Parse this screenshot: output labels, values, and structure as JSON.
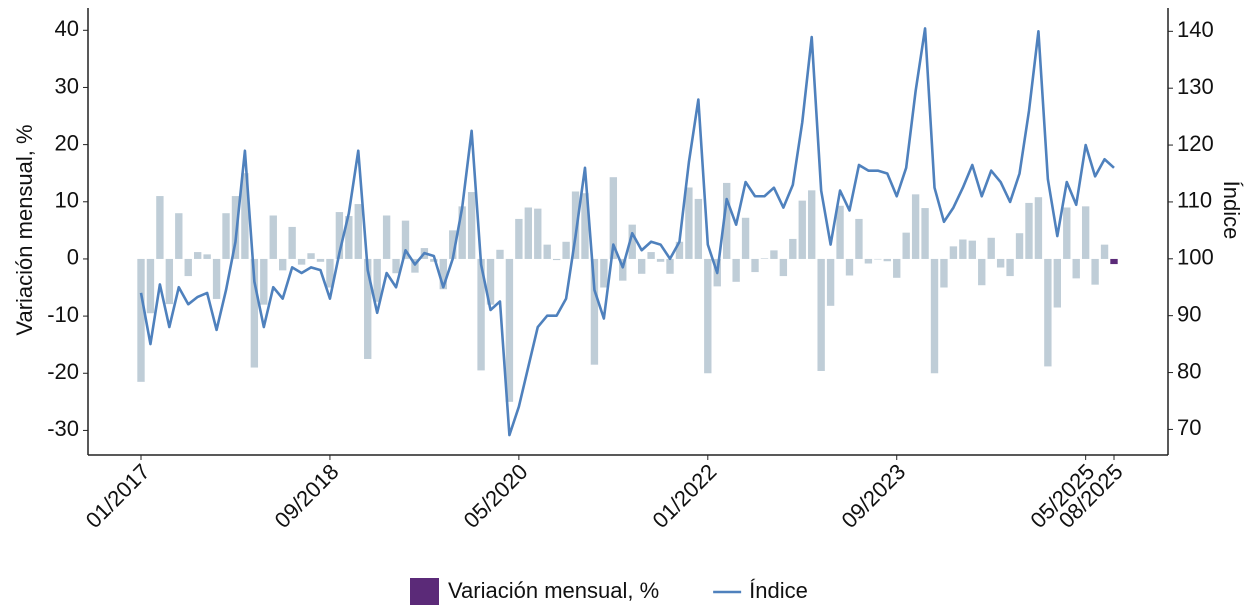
{
  "chart_data": {
    "type": "combo",
    "categories": [
      "01/2017",
      null,
      null,
      null,
      null,
      null,
      null,
      null,
      null,
      null,
      null,
      null,
      null,
      null,
      null,
      null,
      null,
      null,
      null,
      null,
      "09/2018",
      null,
      null,
      null,
      null,
      null,
      null,
      null,
      null,
      null,
      null,
      null,
      null,
      null,
      null,
      null,
      null,
      null,
      null,
      null,
      "05/2020",
      null,
      null,
      null,
      null,
      null,
      null,
      null,
      null,
      null,
      null,
      null,
      null,
      null,
      null,
      null,
      null,
      null,
      null,
      null,
      "01/2022",
      null,
      null,
      null,
      null,
      null,
      null,
      null,
      null,
      null,
      null,
      null,
      null,
      null,
      null,
      null,
      null,
      null,
      null,
      null,
      "09/2023",
      null,
      null,
      null,
      null,
      null,
      null,
      null,
      null,
      null,
      null,
      null,
      null,
      null,
      null,
      null,
      null,
      null,
      null,
      null,
      "05/2025",
      null,
      null,
      "08/2025"
    ],
    "series": [
      {
        "name": "Variación mensual, %",
        "type": "bar",
        "axis": "y",
        "color": "#5b2a78",
        "faded_color": "#bfcdd7",
        "highlight_last": true,
        "values": [
          -21.5,
          -9.5,
          11,
          -7.9,
          8,
          -3,
          1.2,
          0.8,
          -7,
          8,
          11,
          15,
          -19,
          -8,
          7.6,
          -2,
          5.6,
          -1,
          1,
          -0.5,
          -5,
          8.2,
          7.5,
          9.6,
          -17.5,
          -7.5,
          7.6,
          -2.5,
          6.7,
          -2.4,
          1.9,
          -0.5,
          -5.3,
          5,
          9.2,
          11.7,
          -19.5,
          -8,
          1.6,
          -25,
          7,
          9,
          8.8,
          2.5,
          -0.2,
          3,
          11.8,
          11.5,
          -18.5,
          -5,
          14.3,
          -3.8,
          6,
          -2.6,
          1.2,
          -0.5,
          -2.6,
          3,
          12.5,
          10.5,
          -20,
          -4.8,
          13.3,
          -4,
          7.2,
          -2.3,
          0.1,
          1.5,
          -3,
          3.5,
          10.2,
          12,
          -19.6,
          -8.2,
          9.3,
          -2.9,
          7,
          -0.8,
          0,
          -0.4,
          -3.3,
          4.6,
          11.3,
          8.9,
          -20,
          -5,
          2.2,
          3.4,
          3.2,
          -4.6,
          3.7,
          -1.5,
          -3,
          4.5,
          9.8,
          10.8,
          -18.8,
          -8.5,
          9,
          -3.4,
          9.2,
          -4.5,
          2.5,
          -0.9
        ]
      },
      {
        "name": "Índice",
        "type": "line",
        "axis": "y2",
        "color": "#4f81bd",
        "values": [
          94,
          85,
          95.5,
          88,
          95,
          92,
          93.3,
          94,
          87.5,
          94.5,
          103,
          119,
          96,
          88,
          95,
          93,
          98.5,
          97.5,
          98.5,
          98,
          93,
          101,
          108,
          119,
          98,
          90.5,
          97.5,
          95,
          101.5,
          99,
          101,
          100.5,
          95,
          100,
          109,
          122.5,
          99,
          91,
          92.5,
          69,
          74,
          81,
          88,
          90,
          90,
          93,
          104,
          116,
          94.5,
          89.5,
          102.5,
          98.5,
          104.5,
          101.5,
          103,
          102.5,
          100,
          103,
          117,
          128,
          102.5,
          97.5,
          110.5,
          106,
          113.5,
          111,
          111,
          112.5,
          109,
          113,
          124,
          139,
          112,
          102.5,
          112,
          108.5,
          116.5,
          115.5,
          115.5,
          115,
          111,
          116,
          129.5,
          140.5,
          112.5,
          106.5,
          109,
          112.5,
          116.5,
          111,
          115.5,
          113.5,
          110,
          115,
          126,
          140,
          114,
          104,
          113.5,
          109.5,
          120,
          114.5,
          117.5,
          116
        ]
      }
    ],
    "y_label": "Variación mensual, %",
    "y2_label": "Índice",
    "ylim": [
      -34.3,
      43.9
    ],
    "yticks": [
      -30,
      -20,
      -10,
      0,
      10,
      20,
      30,
      40
    ],
    "y2lim": [
      65.5,
      144.1
    ],
    "y2ticks": [
      70,
      80,
      90,
      100,
      110,
      120,
      130,
      140
    ],
    "grid": false,
    "legend": "bottom"
  }
}
